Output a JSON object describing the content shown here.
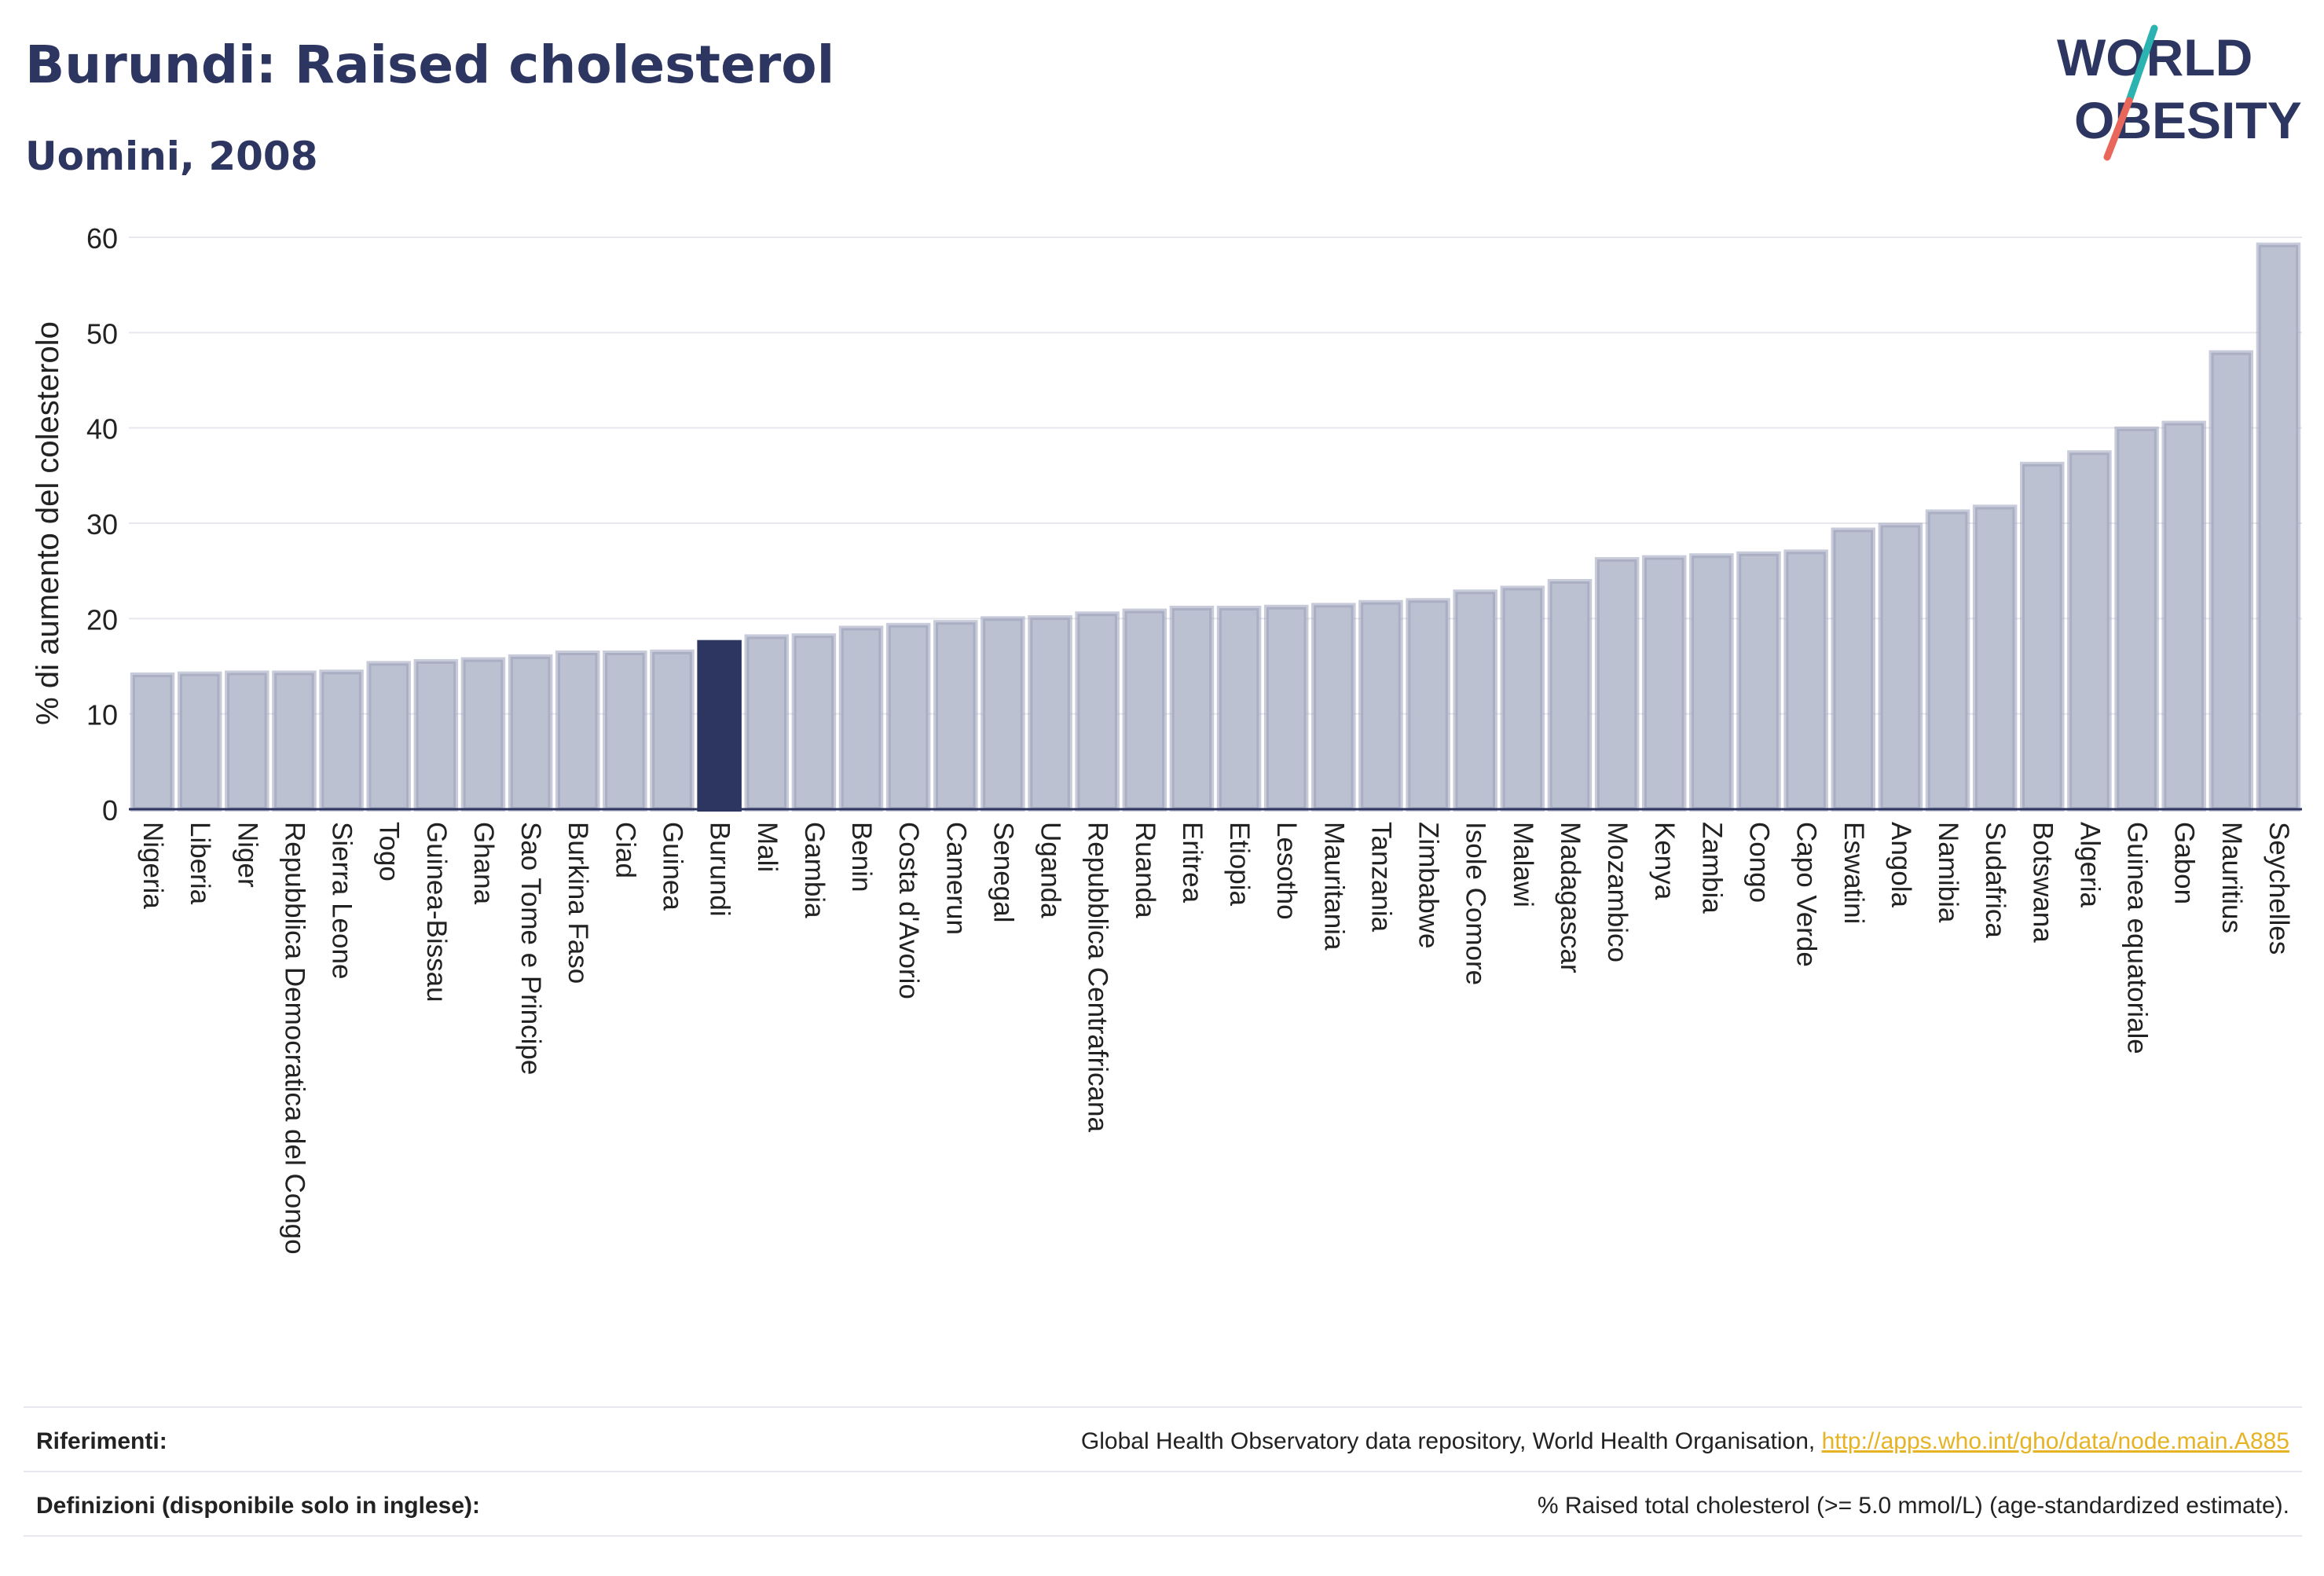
{
  "header": {
    "title": "Burundi: Raised cholesterol",
    "subtitle": "Uomini, 2008"
  },
  "logo": {
    "line1": "WORLD",
    "line2": "OBESITY"
  },
  "colors": {
    "bar": "#bcc1d1",
    "bar_edge": "#9aa1b9",
    "highlight": "#2d3561",
    "grid": "#e6e8ee",
    "text": "#222222",
    "link": "#e6b325"
  },
  "chart_data": {
    "type": "bar",
    "ylabel": "% di aumento del colesterolo",
    "ylim": [
      0,
      60
    ],
    "yticks": [
      0,
      10,
      20,
      30,
      40,
      50,
      60
    ],
    "grid": true,
    "highlight": "Burundi",
    "categories": [
      "Nigeria",
      "Liberia",
      "Niger",
      "Repubblica Democratica del Congo",
      "Sierra Leone",
      "Togo",
      "Guinea-Bissau",
      "Ghana",
      "Sao Tome e Principe",
      "Burkina Faso",
      "Ciad",
      "Guinea",
      "Burundi",
      "Mali",
      "Gambia",
      "Benin",
      "Costa d'Avorio",
      "Camerun",
      "Senegal",
      "Uganda",
      "Repubblica Centrafricana",
      "Ruanda",
      "Eritrea",
      "Etiopia",
      "Lesotho",
      "Mauritania",
      "Tanzania",
      "Zimbabwe",
      "Isole Comore",
      "Malawi",
      "Madagascar",
      "Mozambico",
      "Kenya",
      "Zambia",
      "Congo",
      "Capo Verde",
      "Eswatini",
      "Angola",
      "Namibia",
      "Sudafrica",
      "Botswana",
      "Algeria",
      "Guinea equatoriale",
      "Gabon",
      "Mauritius",
      "Seychelles"
    ],
    "values": [
      14.1,
      14.2,
      14.3,
      14.3,
      14.4,
      15.3,
      15.5,
      15.7,
      16.0,
      16.4,
      16.4,
      16.5,
      17.5,
      18.1,
      18.2,
      19.0,
      19.3,
      19.6,
      20.0,
      20.1,
      20.5,
      20.8,
      21.1,
      21.1,
      21.2,
      21.4,
      21.7,
      21.9,
      22.8,
      23.2,
      23.9,
      26.2,
      26.4,
      26.6,
      26.8,
      27.0,
      29.3,
      29.8,
      31.2,
      31.7,
      36.2,
      37.4,
      39.9,
      40.5,
      47.9,
      59.2
    ]
  },
  "footer": {
    "references_label": "Riferimenti:",
    "references_text": "Global Health Observatory data repository, World Health Organisation, ",
    "references_link": "http://apps.who.int/gho/data/node.main.A885",
    "definitions_label": "Definizioni (disponibile solo in inglese):",
    "definitions_text": "% Raised total cholesterol (>= 5.0 mmol/L) (age-standardized estimate)."
  }
}
